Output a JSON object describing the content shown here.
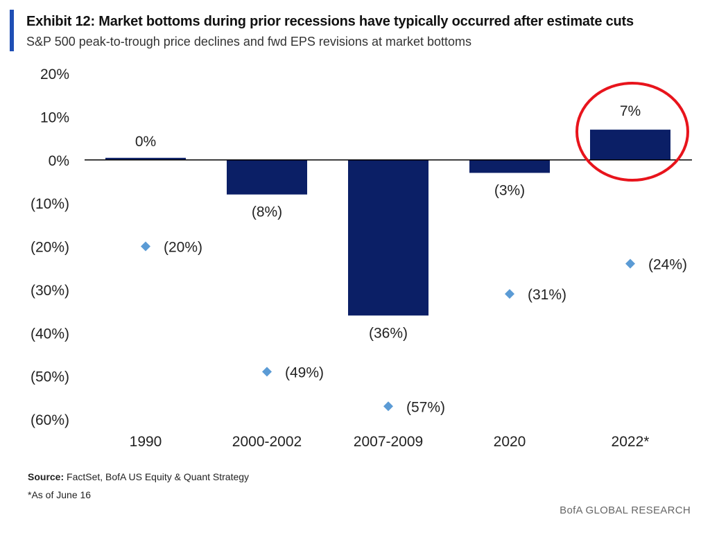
{
  "header": {
    "title": "Exhibit 12: Market bottoms during prior recessions have typically occurred after estimate cuts",
    "subtitle": "S&P 500 peak-to-trough price declines and fwd EPS revisions at market bottoms"
  },
  "footer": {
    "source_label": "Source:",
    "source_text": "FactSet, BofA US Equity & Quant Strategy",
    "footnote": "*As of June 16",
    "brand": "BofA GLOBAL RESEARCH"
  },
  "colors": {
    "bar": "#0b1f66",
    "marker": "#5b9bd5",
    "highlight": "#e8141c",
    "accent": "#1f4fb5"
  },
  "chart_data": {
    "type": "bar",
    "categories": [
      "1990",
      "2000-2002",
      "2007-2009",
      "2020",
      "2022*"
    ],
    "series": [
      {
        "type": "bar",
        "values": [
          0,
          -8,
          -36,
          -3,
          7
        ],
        "labels": [
          "0%",
          "(8%)",
          "(36%)",
          "(3%)",
          "7%"
        ]
      },
      {
        "type": "scatter",
        "values": [
          -20,
          -49,
          -57,
          -31,
          -24
        ],
        "labels": [
          "(20%)",
          "(49%)",
          "(57%)",
          "(31%)",
          "(24%)"
        ]
      }
    ],
    "ylim": [
      -60,
      20
    ],
    "yticks": [
      20,
      10,
      0,
      -10,
      -20,
      -30,
      -40,
      -50,
      -60
    ],
    "ytick_labels": [
      "20%",
      "10%",
      "0%",
      "(10%)",
      "(20%)",
      "(30%)",
      "(40%)",
      "(50%)",
      "(60%)"
    ],
    "highlight_category": "2022*",
    "grid": false,
    "legend": "none"
  }
}
